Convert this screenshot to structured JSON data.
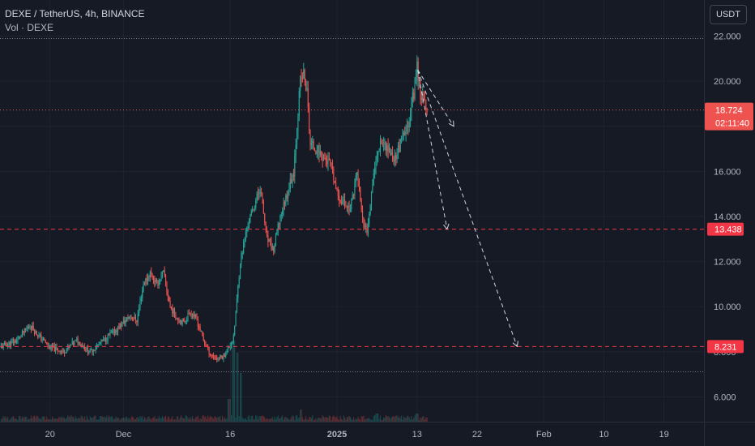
{
  "header": {
    "title": "DEXE / TetherUS, 4h, BINANCE",
    "volume_label": "Vol · DEXE",
    "unit": "USDT"
  },
  "colors": {
    "background": "#161a25",
    "up": "#26a69a",
    "down": "#ef5350",
    "grid": "#1f2330",
    "level_line": "#f23645",
    "projection": "#d1d4dc"
  },
  "chart_data": {
    "type": "candlestick",
    "symbol": "DEXE / TetherUS",
    "timeframe": "4h",
    "exchange": "BINANCE",
    "y_axis": {
      "ticks": [
        "6.000",
        "8.000",
        "10.000",
        "12.000",
        "14.000",
        "16.000",
        "18.000",
        "20.000",
        "22.000"
      ],
      "ylim": [
        4.9,
        23.6
      ]
    },
    "x_axis": {
      "ticks": [
        "20",
        "Dec",
        "16",
        "2025",
        "13",
        "22",
        "Feb",
        "10",
        "19"
      ],
      "tick_days": [
        -12,
        -1,
        15,
        31,
        43,
        52,
        62,
        71,
        80
      ],
      "xlim_days": [
        -19.5,
        86
      ]
    },
    "price_path": [
      [
        -19.5,
        8.2
      ],
      [
        -17,
        8.5
      ],
      [
        -15,
        9.2
      ],
      [
        -14,
        8.8
      ],
      [
        -12,
        8.2
      ],
      [
        -10,
        8.0
      ],
      [
        -8,
        8.5
      ],
      [
        -6,
        8.0
      ],
      [
        -4,
        8.5
      ],
      [
        -2,
        9.0
      ],
      [
        0,
        9.6
      ],
      [
        1,
        9.4
      ],
      [
        2,
        11.0
      ],
      [
        3,
        11.5
      ],
      [
        4,
        11.0
      ],
      [
        5,
        11.5
      ],
      [
        6,
        10.0
      ],
      [
        7,
        9.5
      ],
      [
        8,
        9.3
      ],
      [
        9,
        9.8
      ],
      [
        10,
        9.4
      ],
      [
        11,
        8.5
      ],
      [
        12,
        7.9
      ],
      [
        13,
        7.7
      ],
      [
        14,
        7.8
      ],
      [
        15.5,
        8.6
      ],
      [
        16.5,
        12.0
      ],
      [
        17.5,
        13.5
      ],
      [
        18.5,
        14.4
      ],
      [
        19.5,
        15.3
      ],
      [
        20.5,
        13.0
      ],
      [
        21.5,
        12.5
      ],
      [
        22.5,
        14.0
      ],
      [
        23.5,
        15.0
      ],
      [
        24.5,
        16.0
      ],
      [
        25.5,
        20.0
      ],
      [
        26,
        20.3
      ],
      [
        26.5,
        19.5
      ],
      [
        27,
        17.2
      ],
      [
        28,
        17.0
      ],
      [
        29,
        16.6
      ],
      [
        30,
        16.3
      ],
      [
        31,
        15.0
      ],
      [
        32,
        14.6
      ],
      [
        33,
        14.3
      ],
      [
        34,
        16.0
      ],
      [
        35,
        13.5
      ],
      [
        35.5,
        13.4
      ],
      [
        36.5,
        16.0
      ],
      [
        37.5,
        17.4
      ],
      [
        38.5,
        17.1
      ],
      [
        39.5,
        16.5
      ],
      [
        40.5,
        17.2
      ],
      [
        41.5,
        17.9
      ],
      [
        42.5,
        19.5
      ],
      [
        43,
        20.7
      ],
      [
        43.5,
        19.5
      ],
      [
        44.5,
        18.724
      ]
    ],
    "volume_spikes": [
      [
        15.5,
        1.0
      ],
      [
        16.1,
        0.85
      ],
      [
        16.6,
        0.6
      ],
      [
        14.8,
        0.28
      ],
      [
        25.6,
        0.15
      ],
      [
        37,
        0.1
      ],
      [
        43,
        0.1
      ]
    ],
    "annotations": {
      "current_price": "18.724",
      "countdown": "02:11:40",
      "levels": [
        {
          "label": "13.438",
          "value": 13.438
        },
        {
          "label": "8.231",
          "value": 8.231
        }
      ],
      "projection_target_values": [
        18.0,
        13.438,
        8.231
      ]
    }
  }
}
